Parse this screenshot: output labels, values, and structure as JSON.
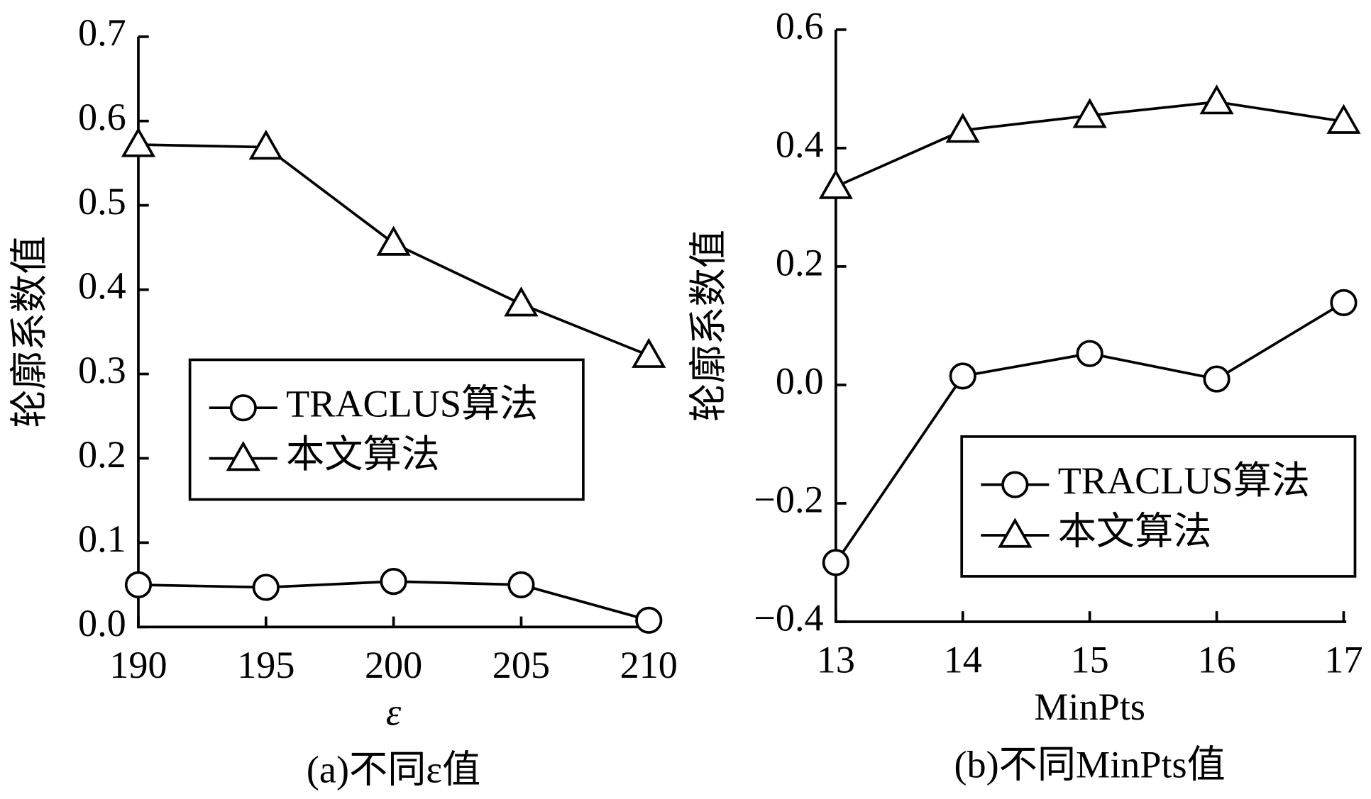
{
  "chart_data": [
    {
      "type": "line",
      "caption": "(a)不同ε值",
      "x_label": "ε",
      "y_label": "轮廓系数值",
      "x": [
        190,
        195,
        200,
        205,
        210
      ],
      "xlim": [
        190,
        210
      ],
      "xticks": [
        190,
        195,
        200,
        205,
        210
      ],
      "ylim": [
        0,
        0.7
      ],
      "yticks": [
        {
          "value": 0,
          "label": "0.0"
        },
        0.1,
        0.2,
        0.3,
        0.4,
        0.5,
        0.6,
        0.7
      ],
      "legend": "center",
      "series": [
        {
          "name": "TRACLUS算法",
          "color": "#000000",
          "marker": "circle",
          "values": [
            0.05,
            0.047,
            0.054,
            0.05,
            0.008
          ]
        },
        {
          "name": "本文算法",
          "color": "#000000",
          "marker": "triangle",
          "values": [
            0.572,
            0.569,
            0.455,
            0.383,
            0.322
          ]
        }
      ]
    },
    {
      "type": "line",
      "caption": "(b)不同MinPts值",
      "x_label": "MinPts",
      "y_label": "轮廓系数值",
      "x": [
        13,
        14,
        15,
        16,
        17
      ],
      "xlim": [
        13,
        17
      ],
      "xticks": [
        13,
        14,
        15,
        16,
        17
      ],
      "ylim": [
        -0.4,
        0.6
      ],
      "yticks": [
        {
          "value": -0.4,
          "label": "−0.4"
        },
        {
          "value": -0.2,
          "label": "−0.2"
        },
        {
          "value": 0,
          "label": "0.0"
        },
        0.2,
        0.4,
        0.6
      ],
      "legend": "lower right",
      "series": [
        {
          "name": "TRACLUS算法",
          "color": "#000000",
          "marker": "circle",
          "values": [
            -0.3,
            0.015,
            0.053,
            0.01,
            0.139
          ]
        },
        {
          "name": "本文算法",
          "color": "#000000",
          "marker": "triangle",
          "values": [
            0.335,
            0.43,
            0.455,
            0.478,
            0.445
          ]
        }
      ]
    }
  ]
}
